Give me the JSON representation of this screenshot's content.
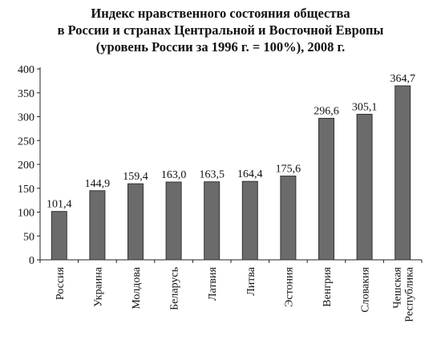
{
  "chart_data": {
    "type": "bar",
    "title_lines": [
      "Индекс нравственного состояния общества",
      "в России и странах Центральной и Восточной Европы",
      "(уровень России за 1996 г. = 100%), 2008 г."
    ],
    "categories": [
      [
        "Россия"
      ],
      [
        "Украина"
      ],
      [
        "Молдова"
      ],
      [
        "Беларусь"
      ],
      [
        "Латвия"
      ],
      [
        "Литва"
      ],
      [
        "Эстония"
      ],
      [
        "Венгрия"
      ],
      [
        "Словакия"
      ],
      [
        "Чешская",
        "Республика"
      ]
    ],
    "values": [
      101.4,
      144.9,
      159.4,
      163.0,
      163.5,
      164.4,
      175.6,
      296.6,
      305.1,
      364.7
    ],
    "value_labels": [
      "101,4",
      "144,9",
      "159,4",
      "163,0",
      "163,5",
      "164,4",
      "175,6",
      "296,6",
      "305,1",
      "364,7"
    ],
    "yticks": [
      "0",
      "50",
      "100",
      "150",
      "200",
      "250",
      "300",
      "350",
      "400"
    ],
    "ylim": [
      0,
      400
    ],
    "grid": false,
    "colors": {
      "bar_fill": "#6b6b6b",
      "bar_stroke": "#333333",
      "axis": "#222222",
      "text": "#111111"
    }
  }
}
